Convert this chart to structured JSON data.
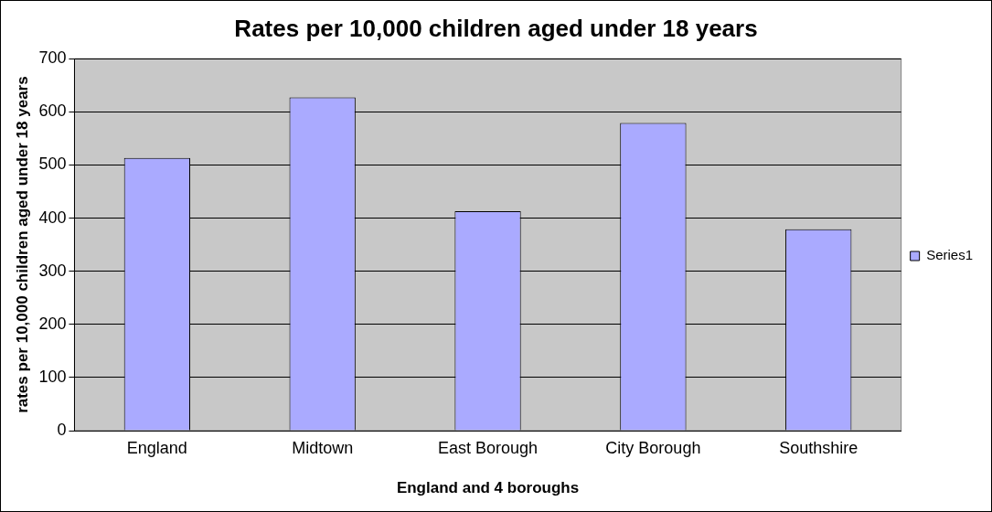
{
  "chart_data": {
    "type": "bar",
    "title": "Rates per 10,000 children aged under 18 years",
    "xlabel": "England and 4 boroughs",
    "ylabel": "rates per 10,000 children aged under 18 years",
    "categories": [
      "England",
      "Midtown",
      "East Borough",
      "City Borough",
      "Southshire"
    ],
    "series": [
      {
        "name": "Series1",
        "color": "#aaaaff",
        "values": [
          513,
          627,
          413,
          579,
          379
        ]
      }
    ],
    "ylim": [
      0,
      700
    ],
    "yticks": [
      0,
      100,
      200,
      300,
      400,
      500,
      600,
      700
    ],
    "grid": "y",
    "legend": "right"
  }
}
